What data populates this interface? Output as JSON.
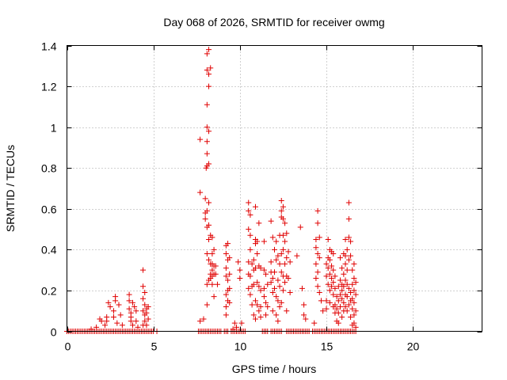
{
  "chart_data": {
    "type": "scatter",
    "title": "Day 068 of 2026, SRMTID for receiver owmg",
    "xlabel": "GPS time / hours",
    "ylabel": "SRMTID / TECUs",
    "xlim": [
      0,
      24
    ],
    "ylim": [
      0,
      1.4
    ],
    "x_ticks": [
      0,
      5,
      10,
      15,
      20
    ],
    "x_tick_labels": [
      "0",
      "5",
      "10",
      "15",
      "20"
    ],
    "y_ticks": [
      0,
      0.2,
      0.4,
      0.6,
      0.8,
      1.0,
      1.2,
      1.4
    ],
    "y_tick_labels": [
      "0",
      "0.2",
      "0.4",
      "0.6",
      "0.8",
      "1",
      "1.2",
      "1.4"
    ],
    "grid": true,
    "marker": "plus",
    "series_color": "#e00000",
    "points": [
      [
        0.0,
        0.0
      ],
      [
        0.1,
        0.0
      ],
      [
        0.2,
        0.0
      ],
      [
        0.3,
        0.0
      ],
      [
        0.4,
        0.0
      ],
      [
        0.5,
        0.0
      ],
      [
        0.6,
        0.0
      ],
      [
        0.7,
        0.0
      ],
      [
        0.8,
        0.0
      ],
      [
        0.9,
        0.0
      ],
      [
        1.0,
        0.0
      ],
      [
        1.1,
        0.0
      ],
      [
        1.2,
        0.0
      ],
      [
        1.3,
        0.0
      ],
      [
        1.4,
        0.0
      ],
      [
        1.5,
        0.0
      ],
      [
        1.6,
        0.0
      ],
      [
        1.7,
        0.0
      ],
      [
        1.8,
        0.0
      ],
      [
        1.9,
        0.0
      ],
      [
        2.0,
        0.0
      ],
      [
        2.1,
        0.0
      ],
      [
        2.2,
        0.0
      ],
      [
        2.3,
        0.0
      ],
      [
        2.4,
        0.0
      ],
      [
        2.5,
        0.0
      ],
      [
        2.6,
        0.0
      ],
      [
        2.7,
        0.0
      ],
      [
        2.8,
        0.0
      ],
      [
        2.9,
        0.0
      ],
      [
        3.0,
        0.0
      ],
      [
        3.1,
        0.0
      ],
      [
        3.2,
        0.0
      ],
      [
        3.3,
        0.0
      ],
      [
        3.4,
        0.0
      ],
      [
        3.5,
        0.0
      ],
      [
        3.6,
        0.0
      ],
      [
        3.7,
        0.0
      ],
      [
        3.8,
        0.0
      ],
      [
        3.9,
        0.0
      ],
      [
        4.0,
        0.0
      ],
      [
        4.1,
        0.0
      ],
      [
        4.2,
        0.0
      ],
      [
        4.3,
        0.0
      ],
      [
        4.4,
        0.0
      ],
      [
        4.5,
        0.0
      ],
      [
        4.6,
        0.0
      ],
      [
        4.7,
        0.0
      ],
      [
        4.8,
        0.0
      ],
      [
        4.9,
        0.0
      ],
      [
        5.0,
        0.0
      ],
      [
        5.2,
        0.0
      ],
      [
        1.4,
        0.01
      ],
      [
        1.7,
        0.02
      ],
      [
        1.9,
        0.06
      ],
      [
        2.0,
        0.05
      ],
      [
        2.2,
        0.03
      ],
      [
        2.3,
        0.07
      ],
      [
        2.3,
        0.05
      ],
      [
        2.4,
        0.14
      ],
      [
        2.5,
        0.12
      ],
      [
        2.7,
        0.1
      ],
      [
        2.7,
        0.07
      ],
      [
        2.8,
        0.17
      ],
      [
        2.8,
        0.15
      ],
      [
        2.9,
        0.04
      ],
      [
        3.0,
        0.13
      ],
      [
        3.1,
        0.08
      ],
      [
        3.2,
        0.03
      ],
      [
        3.6,
        0.18
      ],
      [
        3.6,
        0.15
      ],
      [
        3.6,
        0.11
      ],
      [
        3.7,
        0.09
      ],
      [
        3.7,
        0.07
      ],
      [
        3.7,
        0.05
      ],
      [
        3.8,
        0.14
      ],
      [
        3.8,
        0.03
      ],
      [
        3.9,
        0.12
      ],
      [
        4.0,
        0.1
      ],
      [
        4.0,
        0.05
      ],
      [
        4.1,
        0.02
      ],
      [
        4.4,
        0.3
      ],
      [
        4.4,
        0.22
      ],
      [
        4.4,
        0.16
      ],
      [
        4.4,
        0.1
      ],
      [
        4.5,
        0.19
      ],
      [
        4.5,
        0.13
      ],
      [
        4.5,
        0.08
      ],
      [
        4.5,
        0.05
      ],
      [
        4.6,
        0.11
      ],
      [
        4.6,
        0.09
      ],
      [
        4.7,
        0.12
      ],
      [
        4.7,
        0.06
      ],
      [
        4.4,
        0.03
      ],
      [
        4.6,
        0.03
      ],
      [
        7.6,
        0.0
      ],
      [
        7.7,
        0.0
      ],
      [
        7.8,
        0.0
      ],
      [
        7.9,
        0.0
      ],
      [
        8.0,
        0.0
      ],
      [
        8.1,
        0.0
      ],
      [
        8.2,
        0.0
      ],
      [
        8.3,
        0.0
      ],
      [
        8.4,
        0.0
      ],
      [
        8.5,
        0.0
      ],
      [
        8.6,
        0.0
      ],
      [
        8.7,
        0.0
      ],
      [
        8.8,
        0.0
      ],
      [
        8.9,
        0.0
      ],
      [
        7.7,
        0.05
      ],
      [
        7.7,
        0.68
      ],
      [
        7.7,
        0.94
      ],
      [
        7.9,
        0.06
      ],
      [
        8.0,
        0.65
      ],
      [
        8.0,
        0.58
      ],
      [
        8.0,
        0.55
      ],
      [
        8.05,
        0.8
      ],
      [
        8.1,
        1.36
      ],
      [
        8.1,
        1.28
      ],
      [
        8.1,
        1.11
      ],
      [
        8.1,
        1.0
      ],
      [
        8.1,
        0.93
      ],
      [
        8.1,
        0.87
      ],
      [
        8.1,
        0.81
      ],
      [
        8.1,
        0.59
      ],
      [
        8.1,
        0.51
      ],
      [
        8.1,
        0.38
      ],
      [
        8.1,
        0.23
      ],
      [
        8.1,
        0.13
      ],
      [
        8.2,
        1.38
      ],
      [
        8.2,
        1.26
      ],
      [
        8.2,
        1.2
      ],
      [
        8.2,
        0.98
      ],
      [
        8.2,
        0.82
      ],
      [
        8.2,
        0.63
      ],
      [
        8.2,
        0.52
      ],
      [
        8.2,
        0.45
      ],
      [
        8.2,
        0.35
      ],
      [
        8.2,
        0.25
      ],
      [
        8.3,
        1.29
      ],
      [
        8.3,
        0.47
      ],
      [
        8.3,
        0.33
      ],
      [
        8.3,
        0.28
      ],
      [
        8.3,
        0.26
      ],
      [
        8.4,
        0.46
      ],
      [
        8.4,
        0.38
      ],
      [
        8.4,
        0.33
      ],
      [
        8.4,
        0.3
      ],
      [
        8.4,
        0.27
      ],
      [
        8.4,
        0.23
      ],
      [
        8.5,
        0.4
      ],
      [
        8.5,
        0.32
      ],
      [
        8.5,
        0.28
      ],
      [
        8.5,
        0.17
      ],
      [
        8.6,
        0.32
      ],
      [
        8.6,
        0.28
      ],
      [
        8.7,
        0.23
      ],
      [
        9.1,
        0.0
      ],
      [
        9.2,
        0.0
      ],
      [
        9.3,
        0.0
      ],
      [
        9.5,
        0.0
      ],
      [
        9.6,
        0.0
      ],
      [
        9.7,
        0.0
      ],
      [
        9.8,
        0.0
      ],
      [
        9.9,
        0.0
      ],
      [
        10.0,
        0.0
      ],
      [
        10.1,
        0.0
      ],
      [
        10.2,
        0.0
      ],
      [
        10.3,
        0.0
      ],
      [
        9.2,
        0.42
      ],
      [
        9.2,
        0.38
      ],
      [
        9.2,
        0.31
      ],
      [
        9.2,
        0.27
      ],
      [
        9.2,
        0.18
      ],
      [
        9.2,
        0.12
      ],
      [
        9.2,
        0.08
      ],
      [
        9.3,
        0.43
      ],
      [
        9.3,
        0.35
      ],
      [
        9.3,
        0.25
      ],
      [
        9.3,
        0.2
      ],
      [
        9.3,
        0.15
      ],
      [
        9.4,
        0.36
      ],
      [
        9.4,
        0.28
      ],
      [
        9.4,
        0.21
      ],
      [
        9.4,
        0.14
      ],
      [
        9.6,
        0.01
      ],
      [
        9.7,
        0.04
      ],
      [
        9.8,
        0.02
      ],
      [
        9.9,
        0.34
      ],
      [
        10.0,
        0.3
      ],
      [
        10.0,
        0.26
      ],
      [
        10.1,
        0.04
      ],
      [
        10.5,
        0.63
      ],
      [
        10.5,
        0.59
      ],
      [
        10.5,
        0.5
      ],
      [
        10.5,
        0.34
      ],
      [
        10.5,
        0.28
      ],
      [
        10.5,
        0.21
      ],
      [
        10.6,
        0.57
      ],
      [
        10.6,
        0.47
      ],
      [
        10.6,
        0.4
      ],
      [
        10.6,
        0.27
      ],
      [
        10.6,
        0.18
      ],
      [
        10.7,
        0.33
      ],
      [
        10.7,
        0.22
      ],
      [
        10.7,
        0.13
      ],
      [
        10.8,
        0.35
      ],
      [
        10.8,
        0.3
      ],
      [
        10.8,
        0.23
      ],
      [
        10.8,
        0.08
      ],
      [
        10.9,
        0.61
      ],
      [
        10.9,
        0.45
      ],
      [
        10.9,
        0.43
      ],
      [
        10.9,
        0.31
      ],
      [
        10.9,
        0.15
      ],
      [
        10.9,
        0.06
      ],
      [
        11.0,
        0.44
      ],
      [
        11.0,
        0.38
      ],
      [
        11.0,
        0.24
      ],
      [
        11.0,
        0.13
      ],
      [
        11.1,
        0.53
      ],
      [
        11.1,
        0.32
      ],
      [
        11.1,
        0.22
      ],
      [
        11.1,
        0.1
      ],
      [
        11.2,
        0.31
      ],
      [
        11.2,
        0.2
      ],
      [
        11.2,
        0.12
      ],
      [
        11.2,
        0.07
      ],
      [
        11.4,
        0.44
      ],
      [
        11.4,
        0.3
      ],
      [
        11.4,
        0.21
      ],
      [
        11.4,
        0.17
      ],
      [
        11.5,
        0.28
      ],
      [
        11.5,
        0.14
      ],
      [
        11.5,
        0.08
      ],
      [
        11.6,
        0.23
      ],
      [
        11.6,
        0.12
      ],
      [
        11.8,
        0.54
      ],
      [
        11.8,
        0.34
      ],
      [
        11.8,
        0.29
      ],
      [
        11.8,
        0.24
      ],
      [
        11.9,
        0.46
      ],
      [
        11.9,
        0.26
      ],
      [
        11.9,
        0.19
      ],
      [
        11.9,
        0.1
      ],
      [
        12.0,
        0.4
      ],
      [
        12.0,
        0.29
      ],
      [
        12.0,
        0.21
      ],
      [
        12.1,
        0.44
      ],
      [
        12.1,
        0.35
      ],
      [
        12.1,
        0.17
      ],
      [
        12.1,
        0.08
      ],
      [
        12.2,
        0.37
      ],
      [
        12.2,
        0.25
      ],
      [
        12.2,
        0.15
      ],
      [
        12.2,
        0.05
      ],
      [
        12.3,
        0.47
      ],
      [
        12.3,
        0.33
      ],
      [
        12.3,
        0.22
      ],
      [
        12.3,
        0.12
      ],
      [
        12.4,
        0.64
      ],
      [
        12.4,
        0.59
      ],
      [
        12.4,
        0.56
      ],
      [
        12.4,
        0.38
      ],
      [
        12.4,
        0.29
      ],
      [
        12.4,
        0.14
      ],
      [
        12.5,
        0.61
      ],
      [
        12.5,
        0.55
      ],
      [
        12.5,
        0.47
      ],
      [
        12.5,
        0.4
      ],
      [
        12.5,
        0.27
      ],
      [
        12.5,
        0.2
      ],
      [
        12.6,
        0.53
      ],
      [
        12.6,
        0.44
      ],
      [
        12.6,
        0.33
      ],
      [
        12.6,
        0.24
      ],
      [
        12.7,
        0.48
      ],
      [
        12.7,
        0.36
      ],
      [
        12.7,
        0.27
      ],
      [
        12.7,
        0.1
      ],
      [
        12.8,
        0.39
      ],
      [
        12.8,
        0.26
      ],
      [
        12.9,
        0.34
      ],
      [
        12.9,
        0.19
      ],
      [
        11.3,
        0.0
      ],
      [
        11.4,
        0.0
      ],
      [
        11.5,
        0.0
      ],
      [
        11.6,
        0.0
      ],
      [
        11.8,
        0.0
      ],
      [
        11.9,
        0.0
      ],
      [
        12.0,
        0.0
      ],
      [
        12.1,
        0.0
      ],
      [
        12.2,
        0.0
      ],
      [
        12.3,
        0.0
      ],
      [
        12.4,
        0.0
      ],
      [
        12.7,
        0.0
      ],
      [
        12.8,
        0.0
      ],
      [
        12.9,
        0.0
      ],
      [
        13.0,
        0.0
      ],
      [
        13.1,
        0.0
      ],
      [
        13.2,
        0.0
      ],
      [
        13.3,
        0.0
      ],
      [
        13.4,
        0.0
      ],
      [
        13.5,
        0.0
      ],
      [
        13.6,
        0.0
      ],
      [
        13.7,
        0.0
      ],
      [
        13.8,
        0.0
      ],
      [
        13.9,
        0.0
      ],
      [
        14.0,
        0.0
      ],
      [
        14.2,
        0.0
      ],
      [
        14.3,
        0.0
      ],
      [
        14.4,
        0.0
      ],
      [
        14.5,
        0.0
      ],
      [
        14.6,
        0.0
      ],
      [
        14.7,
        0.0
      ],
      [
        14.8,
        0.0
      ],
      [
        14.9,
        0.0
      ],
      [
        13.3,
        0.37
      ],
      [
        13.5,
        0.51
      ],
      [
        13.6,
        0.21
      ],
      [
        13.7,
        0.13
      ],
      [
        13.7,
        0.08
      ],
      [
        13.8,
        0.06
      ],
      [
        14.3,
        0.04
      ],
      [
        14.4,
        0.45
      ],
      [
        14.4,
        0.41
      ],
      [
        14.4,
        0.33
      ],
      [
        14.4,
        0.26
      ],
      [
        14.5,
        0.59
      ],
      [
        14.5,
        0.53
      ],
      [
        14.5,
        0.38
      ],
      [
        14.5,
        0.29
      ],
      [
        14.5,
        0.22
      ],
      [
        14.6,
        0.46
      ],
      [
        14.6,
        0.36
      ],
      [
        14.6,
        0.19
      ],
      [
        14.7,
        0.15
      ],
      [
        14.8,
        0.1
      ],
      [
        15.0,
        0.33
      ],
      [
        15.0,
        0.27
      ],
      [
        15.0,
        0.15
      ],
      [
        15.0,
        0.11
      ],
      [
        15.1,
        0.45
      ],
      [
        15.1,
        0.36
      ],
      [
        15.1,
        0.31
      ],
      [
        15.1,
        0.23
      ],
      [
        15.2,
        0.4
      ],
      [
        15.2,
        0.35
      ],
      [
        15.2,
        0.28
      ],
      [
        15.2,
        0.2
      ],
      [
        15.2,
        0.14
      ],
      [
        15.3,
        0.39
      ],
      [
        15.3,
        0.32
      ],
      [
        15.3,
        0.26
      ],
      [
        15.3,
        0.22
      ],
      [
        15.4,
        0.38
      ],
      [
        15.4,
        0.3
      ],
      [
        15.4,
        0.24
      ],
      [
        15.4,
        0.18
      ],
      [
        15.4,
        0.12
      ],
      [
        15.5,
        0.27
      ],
      [
        15.5,
        0.21
      ],
      [
        15.5,
        0.13
      ],
      [
        15.5,
        0.09
      ],
      [
        15.6,
        0.17
      ],
      [
        15.6,
        0.11
      ],
      [
        15.6,
        0.05
      ],
      [
        15.7,
        0.22
      ],
      [
        15.7,
        0.15
      ],
      [
        15.7,
        0.09
      ],
      [
        15.7,
        0.04
      ],
      [
        15.8,
        0.36
      ],
      [
        15.8,
        0.25
      ],
      [
        15.8,
        0.18
      ],
      [
        15.8,
        0.12
      ],
      [
        15.9,
        0.31
      ],
      [
        15.9,
        0.23
      ],
      [
        15.9,
        0.2
      ],
      [
        15.9,
        0.16
      ],
      [
        15.9,
        0.07
      ],
      [
        16.0,
        0.38
      ],
      [
        16.0,
        0.28
      ],
      [
        16.0,
        0.22
      ],
      [
        16.0,
        0.14
      ],
      [
        16.0,
        0.1
      ],
      [
        16.1,
        0.45
      ],
      [
        16.1,
        0.37
      ],
      [
        16.1,
        0.33
      ],
      [
        16.1,
        0.25
      ],
      [
        16.1,
        0.18
      ],
      [
        16.1,
        0.12
      ],
      [
        16.2,
        0.4
      ],
      [
        16.2,
        0.3
      ],
      [
        16.2,
        0.23
      ],
      [
        16.2,
        0.17
      ],
      [
        16.2,
        0.1
      ],
      [
        16.3,
        0.63
      ],
      [
        16.3,
        0.55
      ],
      [
        16.3,
        0.46
      ],
      [
        16.3,
        0.35
      ],
      [
        16.3,
        0.21
      ],
      [
        16.3,
        0.13
      ],
      [
        16.4,
        0.44
      ],
      [
        16.4,
        0.37
      ],
      [
        16.4,
        0.19
      ],
      [
        16.4,
        0.15
      ],
      [
        16.4,
        0.07
      ],
      [
        16.5,
        0.3
      ],
      [
        16.5,
        0.23
      ],
      [
        16.5,
        0.16
      ],
      [
        16.5,
        0.11
      ],
      [
        16.5,
        0.03
      ],
      [
        16.6,
        0.33
      ],
      [
        16.6,
        0.26
      ],
      [
        16.6,
        0.2
      ],
      [
        16.6,
        0.14
      ],
      [
        16.6,
        0.08
      ],
      [
        16.6,
        0.04
      ],
      [
        16.7,
        0.24
      ],
      [
        16.7,
        0.18
      ],
      [
        16.7,
        0.1
      ],
      [
        16.7,
        0.02
      ],
      [
        15.0,
        0.0
      ],
      [
        15.1,
        0.0
      ],
      [
        15.2,
        0.0
      ],
      [
        15.3,
        0.0
      ],
      [
        15.4,
        0.0
      ],
      [
        15.5,
        0.0
      ],
      [
        15.6,
        0.0
      ],
      [
        15.7,
        0.0
      ],
      [
        15.8,
        0.0
      ],
      [
        15.9,
        0.0
      ],
      [
        16.0,
        0.0
      ],
      [
        16.1,
        0.0
      ],
      [
        16.2,
        0.0
      ],
      [
        16.3,
        0.0
      ],
      [
        16.4,
        0.0
      ],
      [
        16.5,
        0.0
      ],
      [
        16.6,
        0.0
      ],
      [
        16.7,
        0.0
      ]
    ]
  }
}
